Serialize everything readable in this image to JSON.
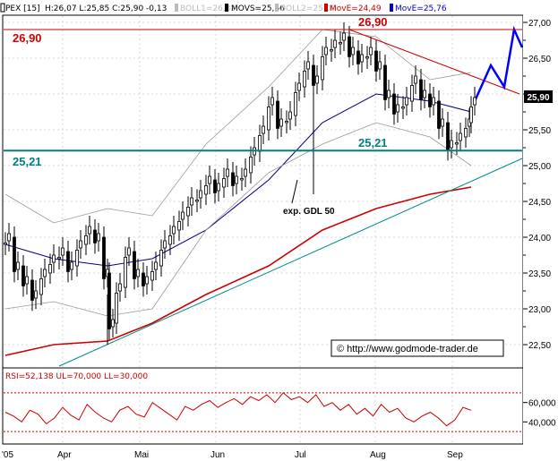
{
  "chart_data": [
    {
      "type": "candlestick",
      "header": {
        "symbol": "PEX [15]",
        "ohlc": "H:26,07 L:25,85 C:25,90 -0,13",
        "boll1": "BOLL1=26,32",
        "movs": "MOVS=25,66",
        "boll2": "BOLL2=25,00",
        "move1": "MovE=24,49",
        "move2": "MovE=25,76"
      },
      "ylim": [
        22.2,
        27.2
      ],
      "y_ticks": [
        "27,00",
        "26,50",
        "26,00",
        "25,50",
        "25,00",
        "24,50",
        "24,00",
        "23,50",
        "23,00",
        "22,50"
      ],
      "x_labels": [
        "'05",
        "Apr",
        "Mai",
        "Jun",
        "Jul",
        "Aug",
        "Sep"
      ],
      "current_price_label": "25,90",
      "levels": [
        {
          "label": "26,90",
          "value": 26.9,
          "color": "#cc0000"
        },
        {
          "label": "25,21",
          "value": 25.21,
          "color": "#008080"
        }
      ],
      "annotations": {
        "ema_label": "exp. GDL 50",
        "copyright": "© http://www.godmode-trader.de"
      },
      "colors": {
        "resistance": "#cc0000",
        "support": "#008080",
        "ema_short": "#00008b",
        "ema_long": "#cc0000",
        "bollinger": "#999999",
        "forecast": "#0000ff",
        "trend_up": "#008b8b"
      }
    },
    {
      "type": "line",
      "title": "RSI=52,138 UL=70,000 LL=30,000",
      "ylim": [
        20,
        80
      ],
      "y_ticks": [
        "60,000",
        "40,000"
      ],
      "upper_level": 70,
      "lower_level": 30,
      "color": "#cc0000"
    }
  ]
}
